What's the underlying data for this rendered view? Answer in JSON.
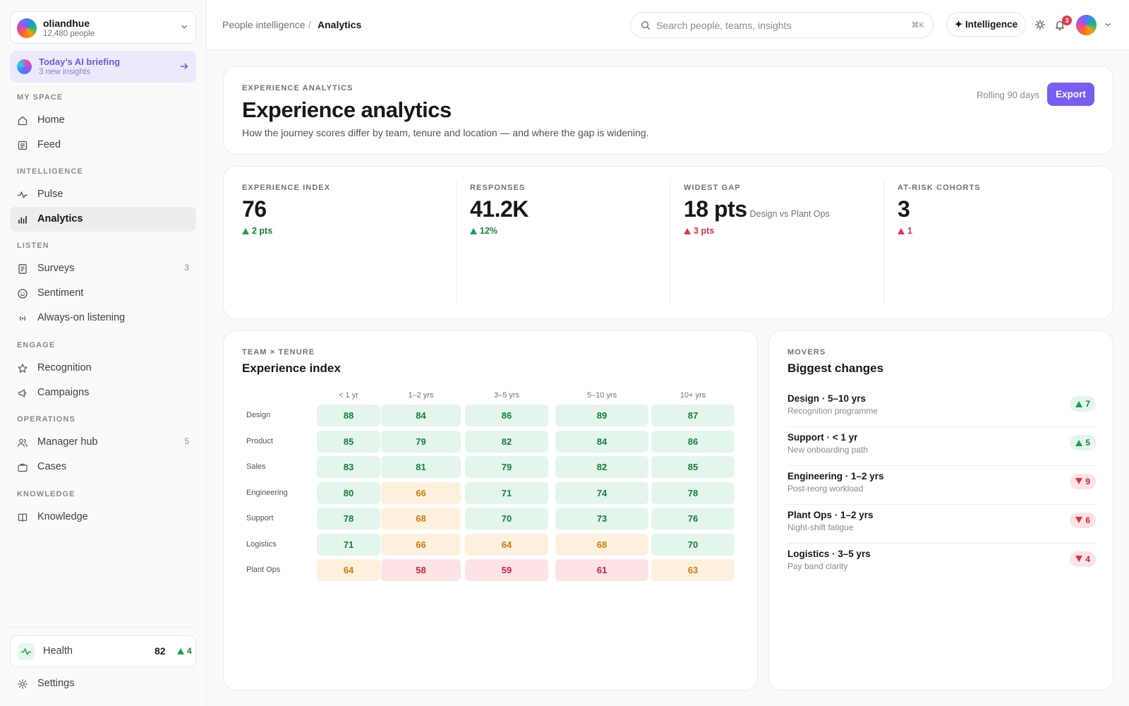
{
  "workspace": {
    "name": "oliandhue",
    "people": "12,480 people"
  },
  "briefing": {
    "title": "Today’s AI briefing",
    "subtitle": "3 new insights"
  },
  "sidebar": {
    "sections": [
      "MY SPACE",
      "INTELLIGENCE",
      "LISTEN",
      "ENGAGE",
      "OPERATIONS",
      "KNOWLEDGE"
    ],
    "items": [
      {
        "label": "Home",
        "icon": "home-icon"
      },
      {
        "label": "Feed",
        "icon": "feed-icon"
      },
      {
        "label": "Pulse",
        "icon": "pulse-icon"
      },
      {
        "label": "Analytics",
        "icon": "bar-chart-icon",
        "active": true
      },
      {
        "label": "Surveys",
        "icon": "survey-icon",
        "count": "3"
      },
      {
        "label": "Sentiment",
        "icon": "smile-icon"
      },
      {
        "label": "Always-on listening",
        "icon": "broadcast-icon"
      },
      {
        "label": "Recognition",
        "icon": "star-icon"
      },
      {
        "label": "Campaigns",
        "icon": "megaphone-icon"
      },
      {
        "label": "Manager hub",
        "icon": "users-icon",
        "count": "5"
      },
      {
        "label": "Cases",
        "icon": "briefcase-icon"
      },
      {
        "label": "Knowledge",
        "icon": "book-icon"
      }
    ],
    "health": {
      "label": "Health",
      "value": "82",
      "delta": "4"
    },
    "settings": "Settings"
  },
  "header": {
    "breadcrumb": [
      "People intelligence",
      "Analytics"
    ],
    "search_placeholder": "Search people, teams, insights",
    "search_shortcut": "⌘K",
    "intelligence_label": "✦ Intelligence",
    "notification_count": "3"
  },
  "hero": {
    "eyebrow": "EXPERIENCE ANALYTICS",
    "title": "Experience analytics",
    "description": "How the journey scores differ by team, tenure and location — and where the gap is widening.",
    "range": "Rolling 90 days",
    "export": "Export"
  },
  "kpis": [
    {
      "label": "EXPERIENCE INDEX",
      "value": "76",
      "suffix": "",
      "delta": "2 pts",
      "trend": "up"
    },
    {
      "label": "RESPONSES",
      "value": "41.2K",
      "suffix": "",
      "delta": "12%",
      "trend": "up"
    },
    {
      "label": "WIDEST GAP",
      "value": "18 pts",
      "suffix": "Design vs Plant Ops",
      "delta": "3 pts",
      "trend": "up-bad"
    },
    {
      "label": "AT-RISK COHORTS",
      "value": "3",
      "suffix": "",
      "delta": "1",
      "trend": "up-bad"
    }
  ],
  "heatmap": {
    "eyebrow": "TEAM × TENURE",
    "title": "Experience index",
    "columns": [
      "< 1 yr",
      "1–2 yrs",
      "3–5 yrs",
      "5–10 yrs",
      "10+ yrs"
    ],
    "rows": [
      {
        "team": "Design",
        "values": [
          88,
          84,
          86,
          89,
          87
        ]
      },
      {
        "team": "Product",
        "values": [
          85,
          79,
          82,
          84,
          86
        ]
      },
      {
        "team": "Sales",
        "values": [
          83,
          81,
          79,
          82,
          85
        ]
      },
      {
        "team": "Engineering",
        "values": [
          80,
          66,
          71,
          74,
          78
        ]
      },
      {
        "team": "Support",
        "values": [
          78,
          68,
          70,
          73,
          76
        ]
      },
      {
        "team": "Logistics",
        "values": [
          71,
          66,
          64,
          68,
          70
        ]
      },
      {
        "team": "Plant Ops",
        "values": [
          64,
          58,
          59,
          61,
          63
        ]
      }
    ]
  },
  "movers": {
    "eyebrow": "MOVERS",
    "title": "Biggest changes",
    "items": [
      {
        "title": "Design · 5–10 yrs",
        "subtitle": "Recognition programme",
        "delta": "7",
        "trend": "up"
      },
      {
        "title": "Support · < 1 yr",
        "subtitle": "New onboarding path",
        "delta": "5",
        "trend": "up"
      },
      {
        "title": "Engineering · 1–2 yrs",
        "subtitle": "Post-reorg workload",
        "delta": "9",
        "trend": "down"
      },
      {
        "title": "Plant Ops · 1–2 yrs",
        "subtitle": "Night-shift fatigue",
        "delta": "6",
        "trend": "down"
      },
      {
        "title": "Logistics · 3–5 yrs",
        "subtitle": "Pay band clarity",
        "delta": "4",
        "trend": "down"
      }
    ]
  },
  "colors": {
    "accent": "#7b5cf0",
    "good": "#15803d",
    "warn": "#d07a0f",
    "bad": "#c8283c"
  }
}
